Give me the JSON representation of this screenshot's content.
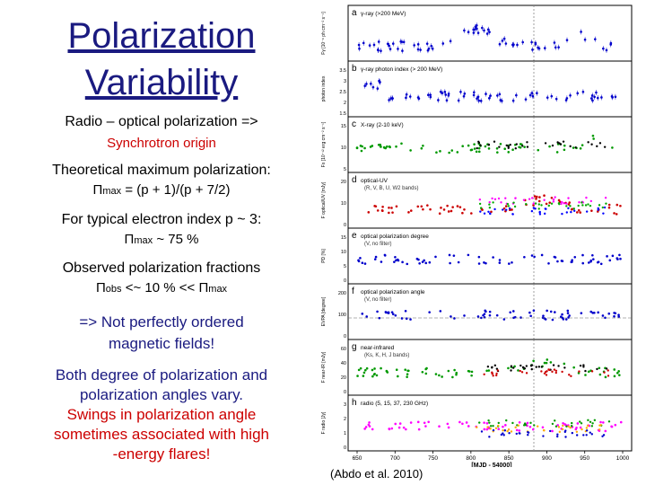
{
  "slide": {
    "title_line1": "Polarization",
    "title_line2": "Variability",
    "radio_text": "Radio – optical polarization =>",
    "synchrotron": "Synchrotron origin",
    "theoretical": "Theoretical maximum polarization:",
    "pmax_symbol": "Π",
    "pmax_sub": "max",
    "pmax_formula": " = (p + 1)/(p + 7/2)",
    "typical": "For typical electron index p ~ 3:",
    "typical_value": " ~ 75 %",
    "observed": "Observed polarization fractions",
    "obs_sub": "obs",
    "obs_relation": " <~ 10 % << ",
    "not_line1": "=> Not perfectly ordered",
    "not_line2": "magnetic fields!",
    "both_line1": "Both degree of polarization and",
    "both_line2": "polarization angles vary.",
    "swing_line1": "Swings in polarization angle",
    "swing_line2": "sometimes associated with high",
    "swing_line3": "-energy flares!",
    "citation": "(Abdo et al. 2010)"
  },
  "figure": {
    "panels": [
      {
        "letter": "a",
        "label": "γ-ray (>200 MeV)",
        "ylabel": "Fγ [10⁻⁶ ph cm⁻² s⁻¹]"
      },
      {
        "letter": "b",
        "label": "γ-ray photon index (> 200 MeV)",
        "ylabel": "photon index",
        "ticks": [
          "3.5",
          "3",
          "2.5",
          "2",
          "1.5"
        ]
      },
      {
        "letter": "c",
        "label": "X-ray (2-10 keV)",
        "ylabel": "Fx [10⁻¹² erg cm⁻² s⁻¹]",
        "ticks": [
          "15",
          "10",
          "5"
        ]
      },
      {
        "letter": "d",
        "label": "optical-UV",
        "sublabel": "(R, V, B, U, W2 bands)",
        "ylabel": "F optical/UV [mJy]",
        "ticks": [
          "20",
          "10",
          "0"
        ]
      },
      {
        "letter": "e",
        "label": "optical polarization degree",
        "sublabel": "(V, no filter)",
        "ylabel": "PD [%]",
        "ticks": [
          "15",
          "10",
          "5",
          "0"
        ]
      },
      {
        "letter": "f",
        "label": "optical polarization angle",
        "sublabel": "(V, no filter)",
        "ylabel": "EVPA [degree]",
        "ticks": [
          "200",
          "100",
          "0"
        ]
      },
      {
        "letter": "g",
        "label": "near-infrared",
        "sublabel": "(Ks, K, H, J bands)",
        "ylabel": "F near-IR [mJy]",
        "ticks": [
          "60",
          "40",
          "20",
          "0"
        ]
      },
      {
        "letter": "h",
        "label": "radio (5, 15, 37, 230 GHz)",
        "ylabel": "F radio [Jy]",
        "ticks": [
          "3",
          "2",
          "1",
          "0"
        ]
      }
    ],
    "xaxis": {
      "ticks": [
        "650",
        "700",
        "750",
        "800",
        "850",
        "900",
        "950",
        "1000"
      ],
      "label": "[MJD - 54000]"
    }
  }
}
